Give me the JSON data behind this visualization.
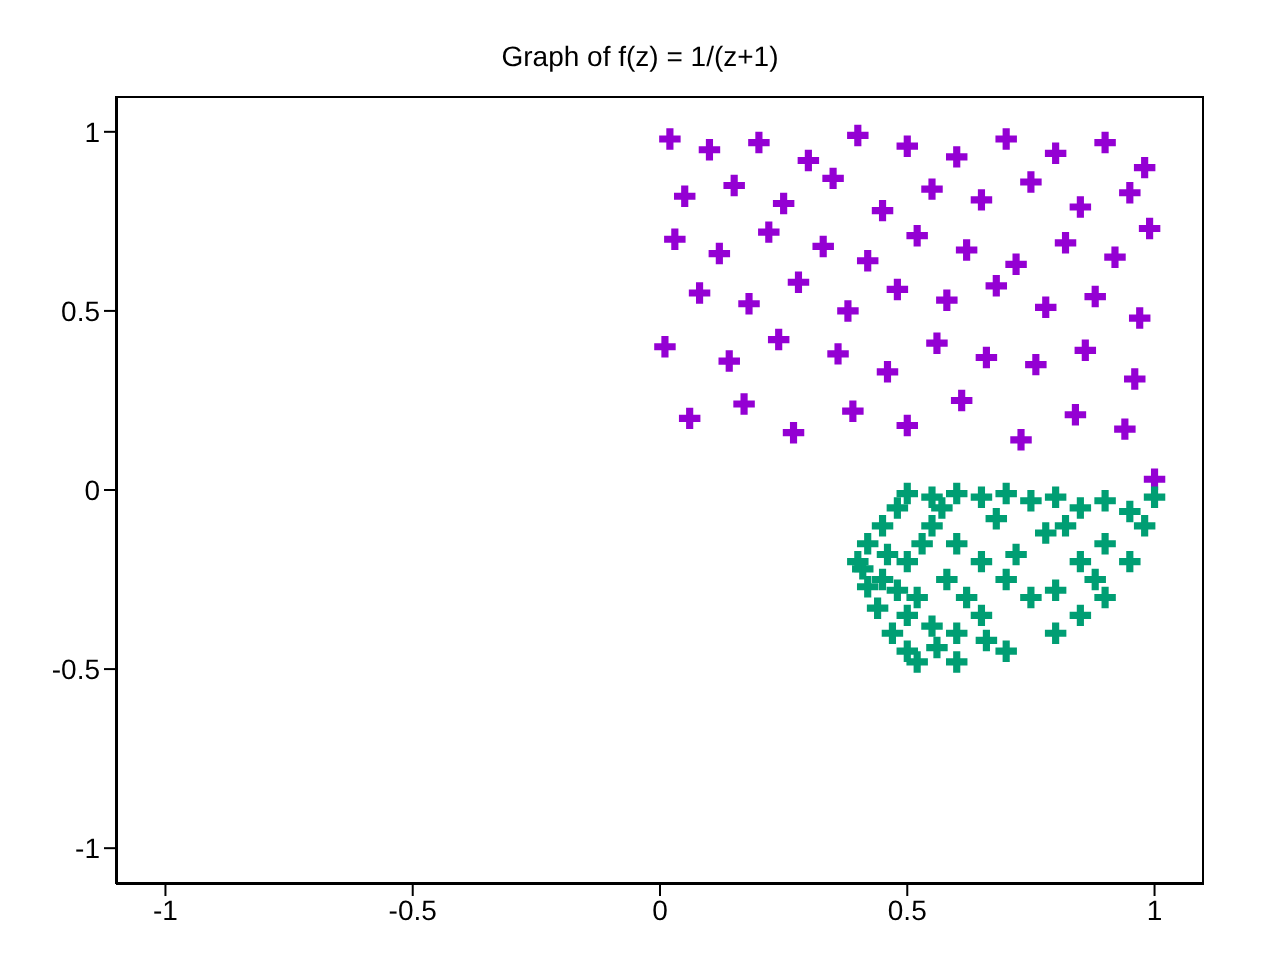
{
  "chart_data": {
    "type": "scatter",
    "title": "Graph of f(z) = 1/(z+1)",
    "xlim": [
      -1.1,
      1.1
    ],
    "xticks": [
      -1,
      -0.5,
      0,
      0.5,
      1
    ],
    "ylim": [
      -1.1,
      1.1
    ],
    "yticks": [
      -1,
      -0.5,
      0,
      0.5,
      1
    ],
    "marker": "cross",
    "series": [
      {
        "color": "#9400d3",
        "x": [
          0.02,
          0.1,
          0.2,
          0.3,
          0.4,
          0.5,
          0.6,
          0.7,
          0.8,
          0.9,
          0.98,
          0.05,
          0.15,
          0.25,
          0.35,
          0.45,
          0.55,
          0.65,
          0.75,
          0.85,
          0.95,
          0.03,
          0.12,
          0.22,
          0.33,
          0.42,
          0.52,
          0.62,
          0.72,
          0.82,
          0.92,
          0.99,
          0.08,
          0.18,
          0.28,
          0.38,
          0.48,
          0.58,
          0.68,
          0.78,
          0.88,
          0.97,
          0.01,
          0.14,
          0.24,
          0.36,
          0.46,
          0.56,
          0.66,
          0.76,
          0.86,
          0.96,
          0.06,
          0.17,
          0.27,
          0.39,
          0.5,
          0.61,
          0.73,
          0.84,
          0.94,
          1.0
        ],
        "values": [
          0.98,
          0.95,
          0.97,
          0.92,
          0.99,
          0.96,
          0.93,
          0.98,
          0.94,
          0.97,
          0.9,
          0.82,
          0.85,
          0.8,
          0.87,
          0.78,
          0.84,
          0.81,
          0.86,
          0.79,
          0.83,
          0.7,
          0.66,
          0.72,
          0.68,
          0.64,
          0.71,
          0.67,
          0.63,
          0.69,
          0.65,
          0.73,
          0.55,
          0.52,
          0.58,
          0.5,
          0.56,
          0.53,
          0.57,
          0.51,
          0.54,
          0.48,
          0.4,
          0.36,
          0.42,
          0.38,
          0.33,
          0.41,
          0.37,
          0.35,
          0.39,
          0.31,
          0.2,
          0.24,
          0.16,
          0.22,
          0.18,
          0.25,
          0.14,
          0.21,
          0.17,
          0.03
        ]
      },
      {
        "color": "#009e73",
        "x": [
          1.0,
          0.98,
          0.95,
          0.9,
          0.85,
          0.8,
          0.7,
          0.6,
          0.52,
          0.5,
          0.47,
          0.44,
          0.42,
          0.41,
          0.4,
          0.42,
          0.45,
          0.48,
          0.5,
          0.55,
          0.6,
          0.65,
          0.7,
          0.75,
          0.8,
          0.85,
          0.9,
          0.95,
          0.55,
          0.6,
          0.65,
          0.7,
          0.75,
          0.8,
          0.85,
          0.9,
          0.78,
          0.68,
          0.5,
          0.52,
          0.55,
          0.6,
          0.65,
          0.58,
          0.62,
          0.48,
          0.53,
          0.57,
          0.46,
          0.5,
          0.72,
          0.82,
          0.88,
          0.66,
          0.56,
          0.45
        ],
        "values": [
          -0.02,
          -0.1,
          -0.2,
          -0.3,
          -0.35,
          -0.4,
          -0.45,
          -0.48,
          -0.48,
          -0.45,
          -0.4,
          -0.33,
          -0.27,
          -0.22,
          -0.2,
          -0.15,
          -0.1,
          -0.05,
          -0.01,
          -0.02,
          -0.01,
          -0.02,
          -0.01,
          -0.03,
          -0.02,
          -0.05,
          -0.03,
          -0.06,
          -0.1,
          -0.15,
          -0.2,
          -0.25,
          -0.3,
          -0.28,
          -0.2,
          -0.15,
          -0.12,
          -0.08,
          -0.2,
          -0.3,
          -0.38,
          -0.4,
          -0.35,
          -0.25,
          -0.3,
          -0.28,
          -0.15,
          -0.05,
          -0.18,
          -0.35,
          -0.18,
          -0.1,
          -0.25,
          -0.42,
          -0.44,
          -0.25
        ]
      }
    ]
  }
}
